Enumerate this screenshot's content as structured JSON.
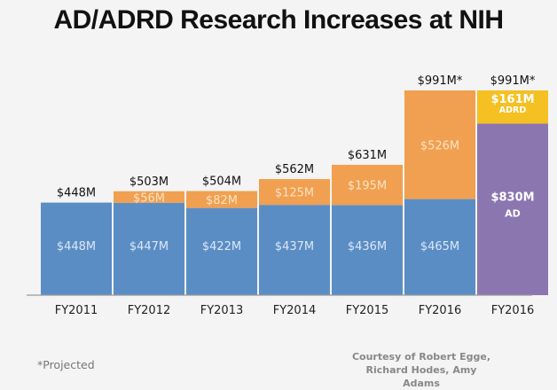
{
  "chart_data": {
    "type": "bar",
    "stacked": true,
    "title": "AD/ADRD Research Increases at NIH",
    "xlabel": "",
    "ylabel": "",
    "ylim": [
      0,
      1000
    ],
    "grid": false,
    "categories": [
      "FY2011",
      "FY2012",
      "FY2013",
      "FY2014",
      "FY2015",
      "FY2016",
      "FY2016"
    ],
    "totals": [
      "$448M",
      "$503M",
      "$504M",
      "$562M",
      "$631M",
      "$991M*",
      "$991M*"
    ],
    "total_values": [
      448,
      503,
      504,
      562,
      631,
      991,
      991
    ],
    "bars": [
      {
        "segments": [
          {
            "value": 448,
            "label": "$448M",
            "color": "#5b8dc5"
          }
        ]
      },
      {
        "segments": [
          {
            "value": 447,
            "label": "$447M",
            "color": "#5b8dc5"
          },
          {
            "value": 56,
            "label": "$56M",
            "color": "#f0a050"
          }
        ]
      },
      {
        "segments": [
          {
            "value": 422,
            "label": "$422M",
            "color": "#5b8dc5"
          },
          {
            "value": 82,
            "label": "$82M",
            "color": "#f0a050"
          }
        ]
      },
      {
        "segments": [
          {
            "value": 437,
            "label": "$437M",
            "color": "#5b8dc5"
          },
          {
            "value": 125,
            "label": "$125M",
            "color": "#f0a050"
          }
        ]
      },
      {
        "segments": [
          {
            "value": 436,
            "label": "$436M",
            "color": "#5b8dc5"
          },
          {
            "value": 195,
            "label": "$195M",
            "color": "#f0a050"
          }
        ]
      },
      {
        "segments": [
          {
            "value": 465,
            "label": "$465M",
            "color": "#5b8dc5"
          },
          {
            "value": 526,
            "label": "$526M",
            "color": "#f0a050"
          }
        ]
      },
      {
        "segments": [
          {
            "value": 830,
            "label": "$830M",
            "sublabel": "AD",
            "color": "#8c76b0"
          },
          {
            "value": 161,
            "label": "$161M",
            "sublabel": "ADRD",
            "color": "#f5c022"
          }
        ]
      }
    ]
  },
  "footer": {
    "note": "*Projected",
    "credit_line1": "Courtesy of Robert Egge,",
    "credit_line2": "Richard Hodes, Amy Adams"
  }
}
